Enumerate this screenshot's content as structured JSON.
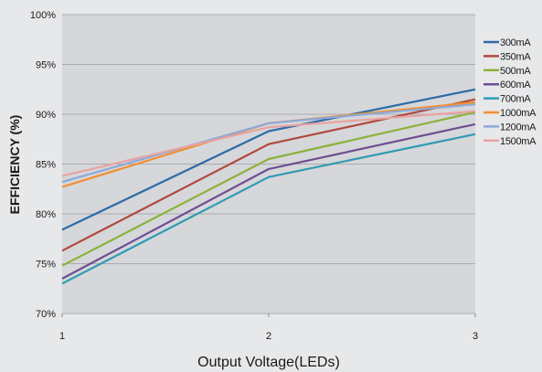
{
  "chart_data": {
    "type": "line",
    "xlabel": "Output Voltage(LEDs)",
    "ylabel": "EFFICIENCY (%)",
    "x": [
      1,
      2,
      3
    ],
    "xlim": [
      1,
      3
    ],
    "ylim": [
      70,
      100
    ],
    "y_ticks": [
      70,
      75,
      80,
      85,
      90,
      95,
      100
    ],
    "y_tick_labels": [
      "70%",
      "75%",
      "80%",
      "85%",
      "90%",
      "95%",
      "100%"
    ],
    "x_tick_labels": [
      "1",
      "2",
      "3"
    ],
    "grid": true,
    "legend_position": "right",
    "series": [
      {
        "name": "300mA",
        "color": "#2e6ca6",
        "values": [
          78.4,
          88.3,
          92.5
        ]
      },
      {
        "name": "350mA",
        "color": "#b0493e",
        "values": [
          76.3,
          87.0,
          91.5
        ]
      },
      {
        "name": "500mA",
        "color": "#8cb23c",
        "values": [
          74.8,
          85.5,
          90.2
        ]
      },
      {
        "name": "600mA",
        "color": "#6e4f93",
        "values": [
          73.5,
          84.5,
          89.0
        ]
      },
      {
        "name": "700mA",
        "color": "#2f9bb3",
        "values": [
          73.0,
          83.7,
          88.0
        ]
      },
      {
        "name": "1000mA",
        "color": "#f1902f",
        "values": [
          82.7,
          89.1,
          91.2
        ]
      },
      {
        "name": "1200mA",
        "color": "#8ea9d8",
        "values": [
          83.2,
          89.1,
          91.0
        ]
      },
      {
        "name": "1500mA",
        "color": "#e8a3a1",
        "values": [
          83.8,
          88.7,
          90.3
        ]
      }
    ]
  }
}
